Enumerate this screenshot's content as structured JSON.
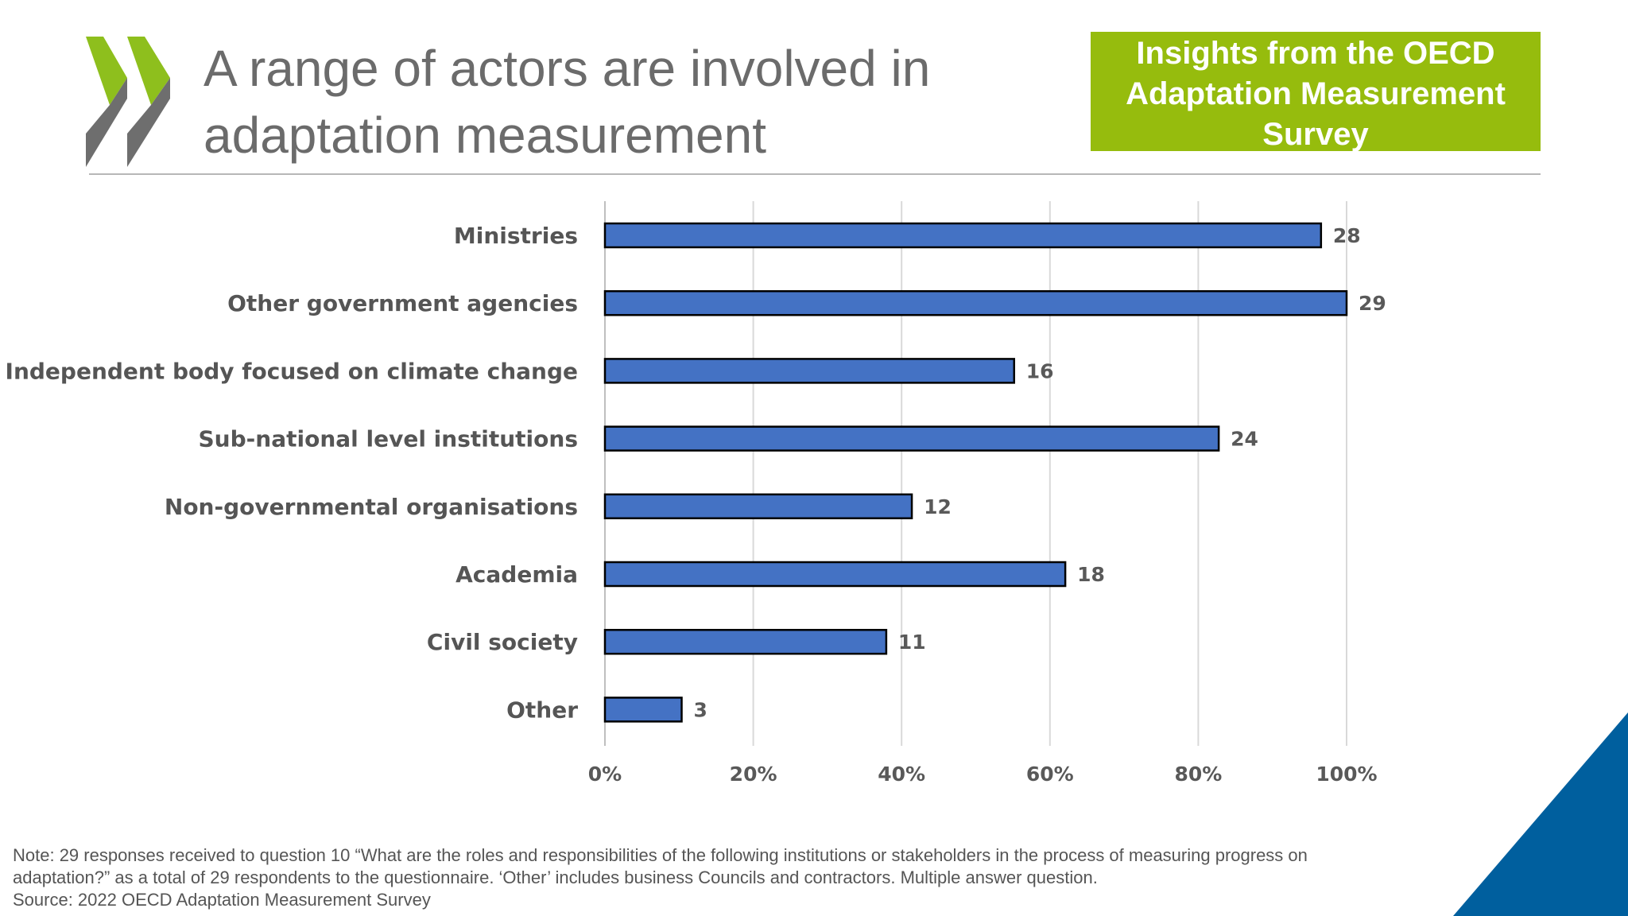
{
  "header": {
    "title_line1": "A range of actors are involved in",
    "title_line2": "adaptation measurement",
    "badge": "Insights from the OECD Adaptation Measurement Survey"
  },
  "colors": {
    "bar": "#4472c4",
    "bar_outline": "#000000",
    "badge_green": "#96bc0d",
    "logo_green": "#8ebf1d",
    "logo_gray": "#6e6e6e",
    "corner_blue": "#005f9e"
  },
  "chart_data": {
    "type": "bar",
    "orientation": "horizontal",
    "categories": [
      "Ministries",
      "Other government agencies",
      "Independent body focused on climate change",
      "Sub-national level institutions",
      "Non-governmental organisations",
      "Academia",
      "Civil society",
      "Other"
    ],
    "values": [
      28,
      29,
      16,
      24,
      12,
      18,
      11,
      3
    ],
    "total": 29,
    "x_ticks": [
      "0%",
      "20%",
      "40%",
      "60%",
      "80%",
      "100%"
    ],
    "xlim": [
      0,
      100
    ],
    "grid": "vertical",
    "data_labels": true
  },
  "note": {
    "line1": "Note: 29 responses received to question 10 “What are the roles and responsibilities of the following institutions or stakeholders in the process of measuring progress on",
    "line2": "adaptation?” as a total of 29 respondents to the questionnaire. ‘Other’ includes business Councils and contractors. Multiple answer question.",
    "line3": "Source: 2022 OECD Adaptation Measurement Survey"
  }
}
